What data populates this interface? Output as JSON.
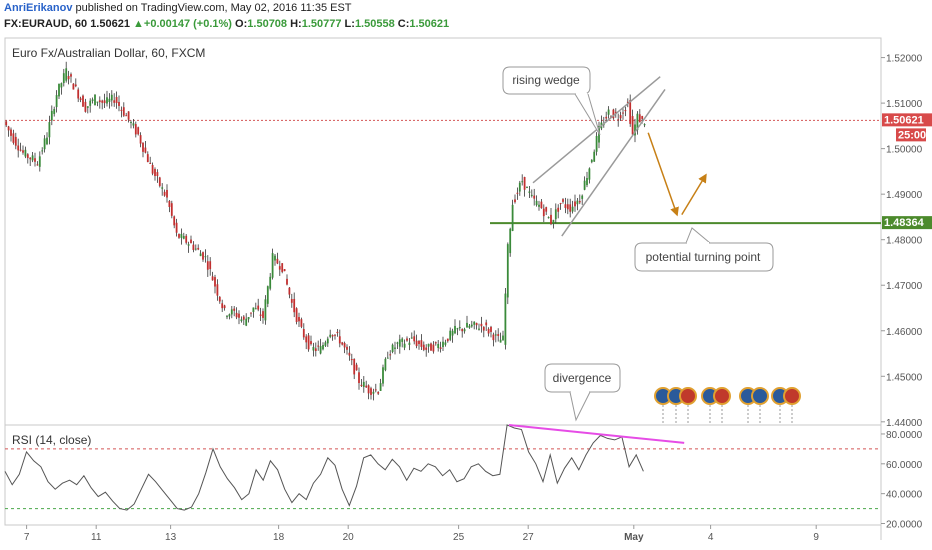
{
  "header": {
    "author": "AnriErikanov",
    "published": "published on TradingView.com, May 02, 2016 11:35 EST",
    "symbol": "FX:EURAUD, 60",
    "last": "1.50621",
    "change": "+0.00147 (+0.1%)",
    "o_label": "O:",
    "o_value": "1.50708",
    "h_label": "H:",
    "h_value": "1.50777",
    "l_label": "L:",
    "l_value": "1.50558",
    "c_label": "C:",
    "c_value": "1.50621",
    "change_arrow": "▲"
  },
  "colors": {
    "up": "#3a8a3a",
    "down": "#c22f2f",
    "accent": "#2862c9",
    "support": "#4c8a2c",
    "rsi_trend": "#e64ce6",
    "wick": "#333333"
  },
  "chart_data": [
    {
      "type": "candlestick",
      "title": "Euro Fx/Australian Dollar, 60, FXCM",
      "x_ticks": [
        "7",
        "11",
        "13",
        "18",
        "20",
        "25",
        "27",
        "May",
        "4",
        "9"
      ],
      "y_ticks": [
        "1.52000",
        "1.51000",
        "1.50000",
        "1.49000",
        "1.48000",
        "1.47000",
        "1.46000",
        "1.45000",
        "1.44000"
      ],
      "ylim": [
        1.4393,
        1.5243
      ],
      "last_price_label": "1.50621",
      "last_price": 1.50621,
      "countdown_label": "25:00",
      "support_label": "1.48364",
      "support_level": 1.48364,
      "price_path": [
        {
          "t": 0,
          "p": 1.506
        },
        {
          "t": 3,
          "p": 1.503
        },
        {
          "t": 8,
          "p": 1.499
        },
        {
          "t": 14,
          "p": 1.497
        },
        {
          "t": 18,
          "p": 1.503
        },
        {
          "t": 22,
          "p": 1.512
        },
        {
          "t": 26,
          "p": 1.517
        },
        {
          "t": 30,
          "p": 1.513
        },
        {
          "t": 34,
          "p": 1.509
        },
        {
          "t": 38,
          "p": 1.511
        },
        {
          "t": 42,
          "p": 1.51
        },
        {
          "t": 46,
          "p": 1.511
        },
        {
          "t": 50,
          "p": 1.508
        },
        {
          "t": 56,
          "p": 1.503
        },
        {
          "t": 62,
          "p": 1.495
        },
        {
          "t": 68,
          "p": 1.489
        },
        {
          "t": 72,
          "p": 1.481
        },
        {
          "t": 78,
          "p": 1.479
        },
        {
          "t": 84,
          "p": 1.476
        },
        {
          "t": 88,
          "p": 1.47
        },
        {
          "t": 92,
          "p": 1.464
        },
        {
          "t": 96,
          "p": 1.464
        },
        {
          "t": 100,
          "p": 1.462
        },
        {
          "t": 104,
          "p": 1.465
        },
        {
          "t": 108,
          "p": 1.463
        },
        {
          "t": 112,
          "p": 1.476
        },
        {
          "t": 116,
          "p": 1.474
        },
        {
          "t": 120,
          "p": 1.466
        },
        {
          "t": 124,
          "p": 1.46
        },
        {
          "t": 128,
          "p": 1.456
        },
        {
          "t": 132,
          "p": 1.456
        },
        {
          "t": 136,
          "p": 1.46
        },
        {
          "t": 140,
          "p": 1.458
        },
        {
          "t": 144,
          "p": 1.454
        },
        {
          "t": 148,
          "p": 1.449
        },
        {
          "t": 152,
          "p": 1.447
        },
        {
          "t": 156,
          "p": 1.447
        },
        {
          "t": 160,
          "p": 1.455
        },
        {
          "t": 164,
          "p": 1.457
        },
        {
          "t": 170,
          "p": 1.458
        },
        {
          "t": 176,
          "p": 1.456
        },
        {
          "t": 182,
          "p": 1.457
        },
        {
          "t": 188,
          "p": 1.46
        },
        {
          "t": 194,
          "p": 1.461
        },
        {
          "t": 200,
          "p": 1.461
        },
        {
          "t": 206,
          "p": 1.458
        },
        {
          "t": 208,
          "p": 1.458
        },
        {
          "t": 210,
          "p": 1.478
        },
        {
          "t": 212,
          "p": 1.488
        },
        {
          "t": 216,
          "p": 1.493
        },
        {
          "t": 220,
          "p": 1.489
        },
        {
          "t": 224,
          "p": 1.487
        },
        {
          "t": 228,
          "p": 1.484
        },
        {
          "t": 232,
          "p": 1.488
        },
        {
          "t": 236,
          "p": 1.487
        },
        {
          "t": 240,
          "p": 1.489
        },
        {
          "t": 244,
          "p": 1.496
        },
        {
          "t": 248,
          "p": 1.504
        },
        {
          "t": 252,
          "p": 1.508
        },
        {
          "t": 256,
          "p": 1.507
        },
        {
          "t": 260,
          "p": 1.51
        },
        {
          "t": 262,
          "p": 1.503
        },
        {
          "t": 264,
          "p": 1.507
        },
        {
          "t": 266,
          "p": 1.506
        }
      ],
      "wedge_upper": [
        {
          "t": 220,
          "p": 1.4925
        },
        {
          "t": 273,
          "p": 1.5158
        }
      ],
      "wedge_lower": [
        {
          "t": 232,
          "p": 1.4808
        },
        {
          "t": 275,
          "p": 1.513
        }
      ],
      "projection_down": [
        {
          "t": 268,
          "p": 1.5035
        },
        {
          "t": 280,
          "p": 1.4855
        }
      ],
      "projection_up": [
        {
          "t": 282,
          "p": 1.4855
        },
        {
          "t": 292,
          "p": 1.4942
        }
      ],
      "annotations": [
        {
          "label": "rising wedge"
        },
        {
          "label": "potential turning point"
        },
        {
          "label": "divergence"
        }
      ]
    },
    {
      "type": "line",
      "title": "RSI (14, close)",
      "y_ticks": [
        "80.0000",
        "60.0000",
        "40.0000",
        "20.0000"
      ],
      "ylim": [
        19,
        86
      ],
      "overbought": 70,
      "oversold": 30,
      "values": [
        55,
        46,
        53,
        68,
        62,
        58,
        48,
        43,
        47,
        49,
        46,
        52,
        44,
        38,
        41,
        35,
        30,
        29,
        33,
        43,
        53,
        48,
        42,
        36,
        30,
        29,
        31,
        40,
        54,
        70,
        58,
        50,
        44,
        36,
        40,
        56,
        49,
        62,
        56,
        43,
        34,
        40,
        36,
        47,
        53,
        64,
        59,
        43,
        32,
        45,
        64,
        66,
        60,
        56,
        63,
        58,
        49,
        57,
        55,
        60,
        58,
        52,
        56,
        48,
        50,
        58,
        60,
        55,
        52,
        53,
        88,
        84,
        83,
        68,
        60,
        48,
        66,
        47,
        57,
        64,
        56,
        66,
        74,
        79,
        77,
        76,
        78,
        58,
        66,
        55
      ],
      "trend_line": [
        {
          "t": 210,
          "v": 86
        },
        {
          "t": 283,
          "v": 74
        }
      ]
    }
  ]
}
